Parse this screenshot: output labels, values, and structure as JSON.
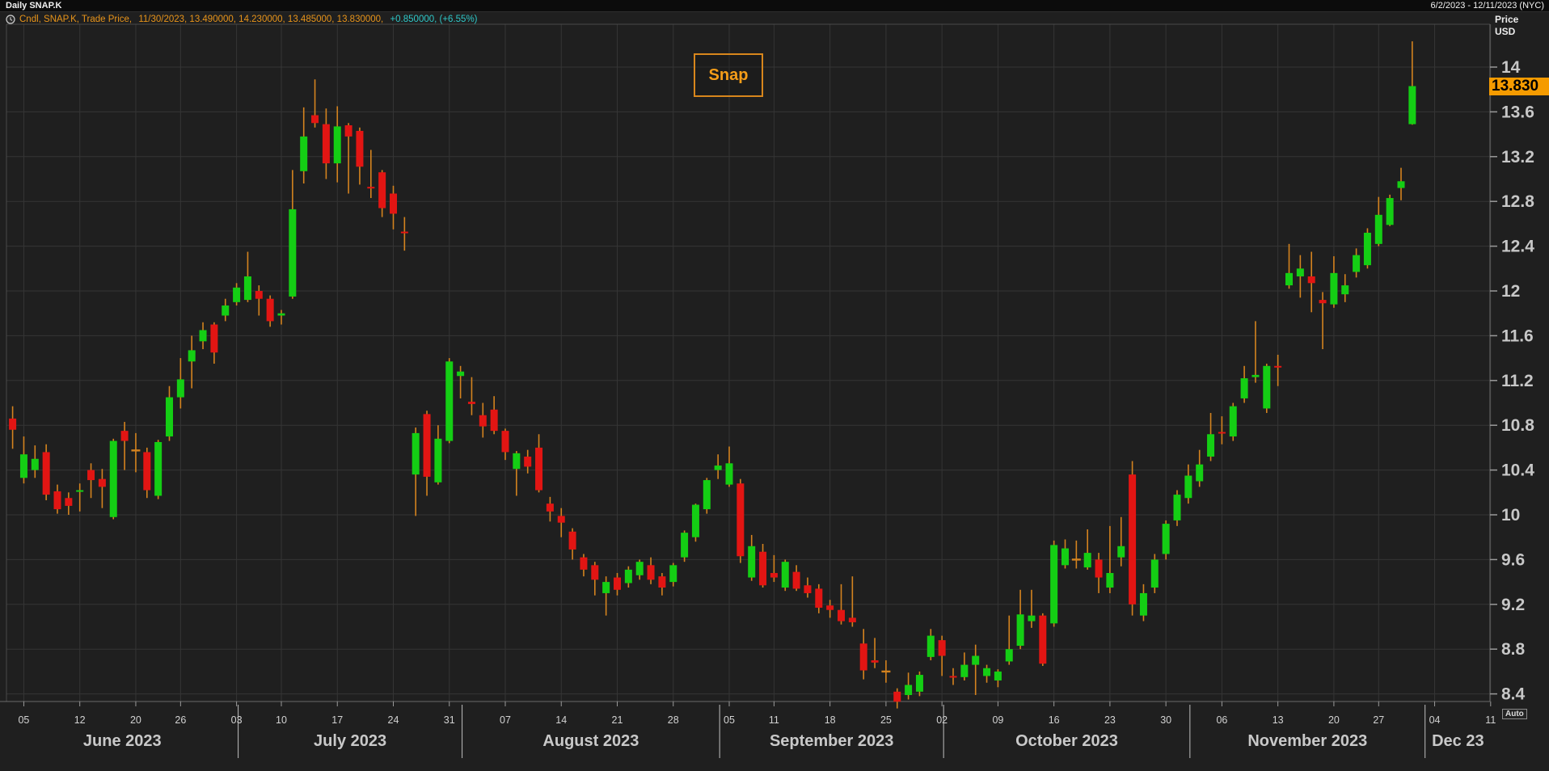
{
  "window": {
    "title": "Daily SNAP.K",
    "date_range": "6/2/2023 - 12/11/2023 (NYC)"
  },
  "legend": {
    "icon": "clock-icon",
    "series_part": "Cndl, SNAP.K, Trade Price,",
    "values_part": " 11/30/2023, 13.490000, 14.230000, 13.485000, 13.830000,",
    "change_part": " +0.850000, (+6.55%)"
  },
  "annotation": {
    "label": "Snap"
  },
  "price_axis": {
    "title_line1": "Price",
    "title_line2": "USD",
    "ticks": [
      "14",
      "13.6",
      "13.2",
      "12.8",
      "12.4",
      "12",
      "11.6",
      "11.2",
      "10.8",
      "10.4",
      "10",
      "9.6",
      "9.2",
      "8.8",
      "8.4"
    ],
    "last_price": "13.830",
    "auto_label": "Auto"
  },
  "x_axis": {
    "day_ticks": [
      {
        "l": "05",
        "i": 1
      },
      {
        "l": "12",
        "i": 6
      },
      {
        "l": "20",
        "i": 11
      },
      {
        "l": "26",
        "i": 15
      },
      {
        "l": "03",
        "i": 20
      },
      {
        "l": "10",
        "i": 24
      },
      {
        "l": "17",
        "i": 29
      },
      {
        "l": "24",
        "i": 34
      },
      {
        "l": "31",
        "i": 39
      },
      {
        "l": "07",
        "i": 44
      },
      {
        "l": "14",
        "i": 49
      },
      {
        "l": "21",
        "i": 54
      },
      {
        "l": "28",
        "i": 59
      },
      {
        "l": "05",
        "i": 64
      },
      {
        "l": "11",
        "i": 68
      },
      {
        "l": "18",
        "i": 73
      },
      {
        "l": "25",
        "i": 78
      },
      {
        "l": "02",
        "i": 83
      },
      {
        "l": "09",
        "i": 88
      },
      {
        "l": "16",
        "i": 93
      },
      {
        "l": "23",
        "i": 98
      },
      {
        "l": "30",
        "i": 103
      },
      {
        "l": "06",
        "i": 108
      },
      {
        "l": "13",
        "i": 113
      },
      {
        "l": "20",
        "i": 118
      },
      {
        "l": "27",
        "i": 122
      },
      {
        "l": "04",
        "i": 127
      },
      {
        "l": "11",
        "i": 132
      }
    ],
    "months": [
      {
        "label": "June 2023",
        "start_i": 0
      },
      {
        "label": "July 2023",
        "start_i": 20
      },
      {
        "label": "August 2023",
        "start_i": 40
      },
      {
        "label": "September 2023",
        "start_i": 63
      },
      {
        "label": "October 2023",
        "start_i": 83
      },
      {
        "label": "November 2023",
        "start_i": 105
      },
      {
        "label": "Dec 23",
        "start_i": 126
      }
    ]
  },
  "colors": {
    "background": "#1f1f1f",
    "grid": "#353535",
    "frame": "#4a4a4a",
    "up": "#14ce14",
    "down": "#e21513",
    "wick": "#d4831f",
    "doji": "#d4831f",
    "legend_orange": "#e8941a",
    "legend_cyan": "#2ec8c8",
    "last_price_bg": "#f59b00",
    "axis_text": "#c7c7c7"
  },
  "chart_data": {
    "type": "candlestick",
    "symbol": "SNAP.K",
    "interval": "daily",
    "year": 2023,
    "ylim": [
      8.33,
      14.38
    ],
    "y_tick_step": 0.4,
    "legend_position": "top-left",
    "grid": true,
    "candles": [
      {
        "date": "6/2",
        "o": 10.86,
        "h": 10.97,
        "l": 10.59,
        "c": 10.76
      },
      {
        "date": "6/5",
        "o": 10.33,
        "h": 10.7,
        "l": 10.28,
        "c": 10.54
      },
      {
        "date": "6/6",
        "o": 10.4,
        "h": 10.62,
        "l": 10.33,
        "c": 10.5
      },
      {
        "date": "6/7",
        "o": 10.56,
        "h": 10.63,
        "l": 10.13,
        "c": 10.18
      },
      {
        "date": "6/8",
        "o": 10.21,
        "h": 10.27,
        "l": 10.01,
        "c": 10.05
      },
      {
        "date": "6/9",
        "o": 10.15,
        "h": 10.2,
        "l": 10.0,
        "c": 10.08
      },
      {
        "date": "6/12",
        "o": 10.21,
        "h": 10.28,
        "l": 10.03,
        "c": 10.22
      },
      {
        "date": "6/13",
        "o": 10.4,
        "h": 10.46,
        "l": 10.15,
        "c": 10.31
      },
      {
        "date": "6/14",
        "o": 10.32,
        "h": 10.41,
        "l": 10.06,
        "c": 10.25
      },
      {
        "date": "6/15",
        "o": 9.98,
        "h": 10.68,
        "l": 9.96,
        "c": 10.66
      },
      {
        "date": "6/16",
        "o": 10.75,
        "h": 10.83,
        "l": 10.4,
        "c": 10.66
      },
      {
        "date": "6/20",
        "o": 10.58,
        "h": 10.73,
        "l": 10.38,
        "c": 10.57,
        "doji": true
      },
      {
        "date": "6/21",
        "o": 10.56,
        "h": 10.6,
        "l": 10.15,
        "c": 10.22
      },
      {
        "date": "6/22",
        "o": 10.17,
        "h": 10.67,
        "l": 10.14,
        "c": 10.65
      },
      {
        "date": "6/23",
        "o": 10.7,
        "h": 11.15,
        "l": 10.66,
        "c": 11.05
      },
      {
        "date": "6/26",
        "o": 11.05,
        "h": 11.4,
        "l": 10.95,
        "c": 11.21
      },
      {
        "date": "6/27",
        "o": 11.37,
        "h": 11.6,
        "l": 11.13,
        "c": 11.47
      },
      {
        "date": "6/28",
        "o": 11.55,
        "h": 11.72,
        "l": 11.48,
        "c": 11.65
      },
      {
        "date": "6/29",
        "o": 11.7,
        "h": 11.72,
        "l": 11.35,
        "c": 11.45
      },
      {
        "date": "6/30",
        "o": 11.78,
        "h": 11.93,
        "l": 11.73,
        "c": 11.87
      },
      {
        "date": "7/3",
        "o": 11.9,
        "h": 12.07,
        "l": 11.87,
        "c": 12.03
      },
      {
        "date": "7/5",
        "o": 11.92,
        "h": 12.35,
        "l": 11.9,
        "c": 12.13
      },
      {
        "date": "7/6",
        "o": 12.0,
        "h": 12.05,
        "l": 11.78,
        "c": 11.93
      },
      {
        "date": "7/7",
        "o": 11.93,
        "h": 11.96,
        "l": 11.68,
        "c": 11.73
      },
      {
        "date": "7/10",
        "o": 11.78,
        "h": 11.83,
        "l": 11.7,
        "c": 11.8
      },
      {
        "date": "7/11",
        "o": 11.95,
        "h": 13.08,
        "l": 11.93,
        "c": 12.73
      },
      {
        "date": "7/12",
        "o": 13.07,
        "h": 13.64,
        "l": 12.96,
        "c": 13.38
      },
      {
        "date": "7/13",
        "o": 13.57,
        "h": 13.89,
        "l": 13.46,
        "c": 13.5
      },
      {
        "date": "7/14",
        "o": 13.49,
        "h": 13.63,
        "l": 13.0,
        "c": 13.14
      },
      {
        "date": "7/17",
        "o": 13.14,
        "h": 13.65,
        "l": 12.97,
        "c": 13.47
      },
      {
        "date": "7/18",
        "o": 13.48,
        "h": 13.5,
        "l": 12.87,
        "c": 13.38
      },
      {
        "date": "7/19",
        "o": 13.43,
        "h": 13.46,
        "l": 12.95,
        "c": 13.11
      },
      {
        "date": "7/20",
        "o": 12.93,
        "h": 13.26,
        "l": 12.83,
        "c": 12.92
      },
      {
        "date": "7/21",
        "o": 13.06,
        "h": 13.08,
        "l": 12.66,
        "c": 12.74
      },
      {
        "date": "7/24",
        "o": 12.87,
        "h": 12.94,
        "l": 12.55,
        "c": 12.69
      },
      {
        "date": "7/25",
        "o": 12.53,
        "h": 12.66,
        "l": 12.36,
        "c": 12.52
      },
      {
        "date": "7/26",
        "o": 10.36,
        "h": 10.78,
        "l": 9.99,
        "c": 10.73
      },
      {
        "date": "7/27",
        "o": 10.9,
        "h": 10.93,
        "l": 10.17,
        "c": 10.34
      },
      {
        "date": "7/28",
        "o": 10.29,
        "h": 10.8,
        "l": 10.27,
        "c": 10.68
      },
      {
        "date": "7/31",
        "o": 10.66,
        "h": 11.4,
        "l": 10.64,
        "c": 11.37
      },
      {
        "date": "8/1",
        "o": 11.24,
        "h": 11.33,
        "l": 11.04,
        "c": 11.28
      },
      {
        "date": "8/2",
        "o": 11.01,
        "h": 11.23,
        "l": 10.89,
        "c": 10.99
      },
      {
        "date": "8/3",
        "o": 10.89,
        "h": 11.0,
        "l": 10.69,
        "c": 10.79
      },
      {
        "date": "8/4",
        "o": 10.94,
        "h": 11.06,
        "l": 10.72,
        "c": 10.75
      },
      {
        "date": "8/7",
        "o": 10.75,
        "h": 10.77,
        "l": 10.49,
        "c": 10.56
      },
      {
        "date": "8/8",
        "o": 10.41,
        "h": 10.57,
        "l": 10.17,
        "c": 10.55
      },
      {
        "date": "8/9",
        "o": 10.52,
        "h": 10.58,
        "l": 10.37,
        "c": 10.43
      },
      {
        "date": "8/10",
        "o": 10.6,
        "h": 10.72,
        "l": 10.2,
        "c": 10.22
      },
      {
        "date": "8/11",
        "o": 10.1,
        "h": 10.16,
        "l": 9.94,
        "c": 10.03
      },
      {
        "date": "8/14",
        "o": 9.99,
        "h": 10.06,
        "l": 9.8,
        "c": 9.93
      },
      {
        "date": "8/15",
        "o": 9.85,
        "h": 9.88,
        "l": 9.6,
        "c": 9.69
      },
      {
        "date": "8/16",
        "o": 9.62,
        "h": 9.65,
        "l": 9.45,
        "c": 9.51
      },
      {
        "date": "8/17",
        "o": 9.55,
        "h": 9.58,
        "l": 9.28,
        "c": 9.42
      },
      {
        "date": "8/18",
        "o": 9.3,
        "h": 9.45,
        "l": 9.1,
        "c": 9.4
      },
      {
        "date": "8/21",
        "o": 9.44,
        "h": 9.48,
        "l": 9.28,
        "c": 9.33
      },
      {
        "date": "8/22",
        "o": 9.39,
        "h": 9.54,
        "l": 9.35,
        "c": 9.51
      },
      {
        "date": "8/23",
        "o": 9.46,
        "h": 9.6,
        "l": 9.42,
        "c": 9.58
      },
      {
        "date": "8/24",
        "o": 9.55,
        "h": 9.62,
        "l": 9.38,
        "c": 9.42
      },
      {
        "date": "8/25",
        "o": 9.45,
        "h": 9.48,
        "l": 9.28,
        "c": 9.35
      },
      {
        "date": "8/28",
        "o": 9.4,
        "h": 9.57,
        "l": 9.36,
        "c": 9.55
      },
      {
        "date": "8/29",
        "o": 9.62,
        "h": 9.86,
        "l": 9.58,
        "c": 9.84
      },
      {
        "date": "8/30",
        "o": 9.8,
        "h": 10.1,
        "l": 9.76,
        "c": 10.09
      },
      {
        "date": "8/31",
        "o": 10.05,
        "h": 10.33,
        "l": 10.01,
        "c": 10.31
      },
      {
        "date": "9/1",
        "o": 10.4,
        "h": 10.54,
        "l": 10.32,
        "c": 10.44
      },
      {
        "date": "9/5",
        "o": 10.27,
        "h": 10.61,
        "l": 10.25,
        "c": 10.46
      },
      {
        "date": "9/6",
        "o": 10.28,
        "h": 10.32,
        "l": 9.57,
        "c": 9.63
      },
      {
        "date": "9/7",
        "o": 9.44,
        "h": 9.82,
        "l": 9.41,
        "c": 9.72
      },
      {
        "date": "9/8",
        "o": 9.67,
        "h": 9.74,
        "l": 9.35,
        "c": 9.37
      },
      {
        "date": "9/11",
        "o": 9.48,
        "h": 9.64,
        "l": 9.4,
        "c": 9.44
      },
      {
        "date": "9/12",
        "o": 9.35,
        "h": 9.6,
        "l": 9.32,
        "c": 9.58
      },
      {
        "date": "9/13",
        "o": 9.49,
        "h": 9.55,
        "l": 9.32,
        "c": 9.34
      },
      {
        "date": "9/14",
        "o": 9.37,
        "h": 9.44,
        "l": 9.26,
        "c": 9.3
      },
      {
        "date": "9/15",
        "o": 9.34,
        "h": 9.38,
        "l": 9.12,
        "c": 9.17
      },
      {
        "date": "9/18",
        "o": 9.19,
        "h": 9.24,
        "l": 9.08,
        "c": 9.15
      },
      {
        "date": "9/19",
        "o": 9.15,
        "h": 9.38,
        "l": 9.02,
        "c": 9.05
      },
      {
        "date": "9/20",
        "o": 9.08,
        "h": 9.45,
        "l": 9.0,
        "c": 9.04
      },
      {
        "date": "9/21",
        "o": 8.85,
        "h": 8.98,
        "l": 8.53,
        "c": 8.61
      },
      {
        "date": "9/22",
        "o": 8.7,
        "h": 8.9,
        "l": 8.63,
        "c": 8.68
      },
      {
        "date": "9/25",
        "o": 8.6,
        "h": 8.7,
        "l": 8.5,
        "c": 8.6,
        "doji": true
      },
      {
        "date": "9/26",
        "o": 8.42,
        "h": 8.45,
        "l": 8.27,
        "c": 8.33
      },
      {
        "date": "9/27",
        "o": 8.39,
        "h": 8.59,
        "l": 8.35,
        "c": 8.48
      },
      {
        "date": "9/28",
        "o": 8.42,
        "h": 8.6,
        "l": 8.38,
        "c": 8.57
      },
      {
        "date": "9/29",
        "o": 8.73,
        "h": 8.98,
        "l": 8.7,
        "c": 8.92
      },
      {
        "date": "10/2",
        "o": 8.88,
        "h": 8.92,
        "l": 8.56,
        "c": 8.74
      },
      {
        "date": "10/3",
        "o": 8.56,
        "h": 8.63,
        "l": 8.48,
        "c": 8.55
      },
      {
        "date": "10/4",
        "o": 8.55,
        "h": 8.77,
        "l": 8.52,
        "c": 8.66
      },
      {
        "date": "10/5",
        "o": 8.66,
        "h": 8.84,
        "l": 8.39,
        "c": 8.74
      },
      {
        "date": "10/6",
        "o": 8.56,
        "h": 8.66,
        "l": 8.5,
        "c": 8.63
      },
      {
        "date": "10/9",
        "o": 8.52,
        "h": 8.62,
        "l": 8.46,
        "c": 8.6
      },
      {
        "date": "10/10",
        "o": 8.69,
        "h": 9.1,
        "l": 8.66,
        "c": 8.8
      },
      {
        "date": "10/11",
        "o": 8.83,
        "h": 9.33,
        "l": 8.8,
        "c": 9.11
      },
      {
        "date": "10/12",
        "o": 9.05,
        "h": 9.33,
        "l": 8.99,
        "c": 9.1
      },
      {
        "date": "10/13",
        "o": 9.1,
        "h": 9.12,
        "l": 8.65,
        "c": 8.67
      },
      {
        "date": "10/16",
        "o": 9.03,
        "h": 9.77,
        "l": 9.0,
        "c": 9.73
      },
      {
        "date": "10/17",
        "o": 9.55,
        "h": 9.78,
        "l": 9.52,
        "c": 9.7
      },
      {
        "date": "10/18",
        "o": 9.6,
        "h": 9.77,
        "l": 9.52,
        "c": 9.6,
        "doji": true
      },
      {
        "date": "10/19",
        "o": 9.53,
        "h": 9.87,
        "l": 9.51,
        "c": 9.66
      },
      {
        "date": "10/20",
        "o": 9.6,
        "h": 9.66,
        "l": 9.3,
        "c": 9.44
      },
      {
        "date": "10/23",
        "o": 9.35,
        "h": 9.9,
        "l": 9.3,
        "c": 9.48
      },
      {
        "date": "10/24",
        "o": 9.62,
        "h": 9.98,
        "l": 9.54,
        "c": 9.72
      },
      {
        "date": "10/25",
        "o": 10.36,
        "h": 10.48,
        "l": 9.1,
        "c": 9.2
      },
      {
        "date": "10/26",
        "o": 9.1,
        "h": 9.38,
        "l": 9.05,
        "c": 9.3
      },
      {
        "date": "10/27",
        "o": 9.35,
        "h": 9.65,
        "l": 9.3,
        "c": 9.6
      },
      {
        "date": "10/30",
        "o": 9.65,
        "h": 9.95,
        "l": 9.6,
        "c": 9.92
      },
      {
        "date": "10/31",
        "o": 9.95,
        "h": 10.22,
        "l": 9.9,
        "c": 10.18
      },
      {
        "date": "11/1",
        "o": 10.15,
        "h": 10.45,
        "l": 10.1,
        "c": 10.35
      },
      {
        "date": "11/2",
        "o": 10.3,
        "h": 10.58,
        "l": 10.25,
        "c": 10.45
      },
      {
        "date": "11/3",
        "o": 10.52,
        "h": 10.91,
        "l": 10.48,
        "c": 10.72
      },
      {
        "date": "11/6",
        "o": 10.74,
        "h": 10.88,
        "l": 10.63,
        "c": 10.73
      },
      {
        "date": "11/7",
        "o": 10.7,
        "h": 11.0,
        "l": 10.66,
        "c": 10.97
      },
      {
        "date": "11/8",
        "o": 11.04,
        "h": 11.33,
        "l": 11.0,
        "c": 11.22
      },
      {
        "date": "11/9",
        "o": 11.23,
        "h": 11.73,
        "l": 11.18,
        "c": 11.25
      },
      {
        "date": "11/10",
        "o": 10.95,
        "h": 11.35,
        "l": 10.91,
        "c": 11.33
      },
      {
        "date": "11/13",
        "o": 11.33,
        "h": 11.43,
        "l": 11.15,
        "c": 11.32
      },
      {
        "date": "11/14",
        "o": 12.05,
        "h": 12.42,
        "l": 12.02,
        "c": 12.16
      },
      {
        "date": "11/15",
        "o": 12.13,
        "h": 12.32,
        "l": 11.94,
        "c": 12.2
      },
      {
        "date": "11/16",
        "o": 12.13,
        "h": 12.35,
        "l": 11.81,
        "c": 12.07
      },
      {
        "date": "11/17",
        "o": 11.92,
        "h": 11.99,
        "l": 11.48,
        "c": 11.89
      },
      {
        "date": "11/20",
        "o": 11.88,
        "h": 12.31,
        "l": 11.85,
        "c": 12.16
      },
      {
        "date": "11/21",
        "o": 11.97,
        "h": 12.15,
        "l": 11.9,
        "c": 12.05
      },
      {
        "date": "11/22",
        "o": 12.17,
        "h": 12.38,
        "l": 12.12,
        "c": 12.32
      },
      {
        "date": "11/24",
        "o": 12.23,
        "h": 12.56,
        "l": 12.2,
        "c": 12.52
      },
      {
        "date": "11/27",
        "o": 12.42,
        "h": 12.84,
        "l": 12.4,
        "c": 12.68
      },
      {
        "date": "11/28",
        "o": 12.59,
        "h": 12.86,
        "l": 12.58,
        "c": 12.83
      },
      {
        "date": "11/29",
        "o": 12.92,
        "h": 13.1,
        "l": 12.81,
        "c": 12.98
      },
      {
        "date": "11/30",
        "o": 13.49,
        "h": 14.23,
        "l": 13.485,
        "c": 13.83
      }
    ]
  }
}
